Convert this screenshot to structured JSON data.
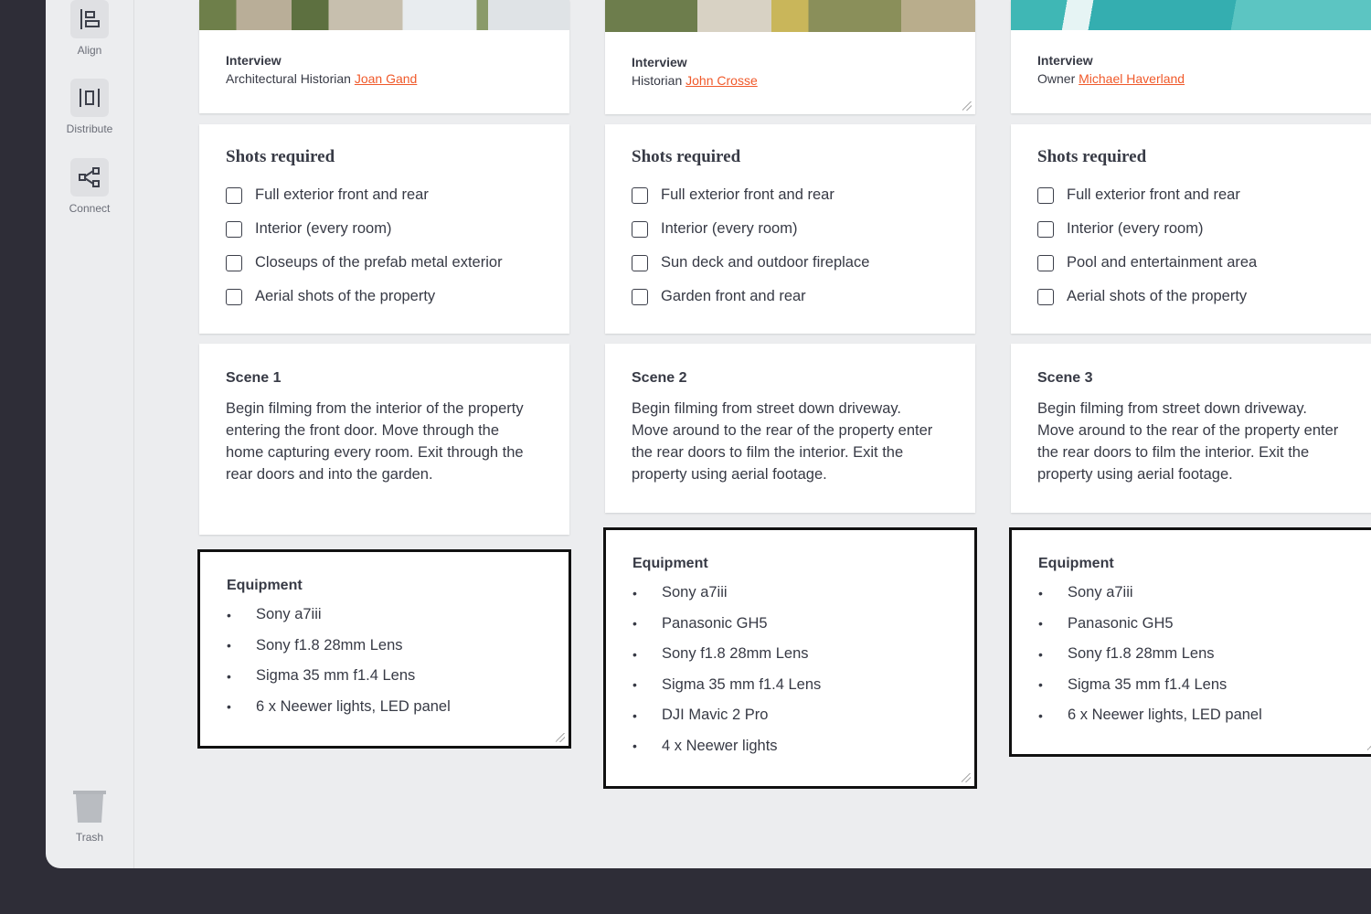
{
  "sidebar": {
    "tools": [
      {
        "label": "Align",
        "icon": "align-icon"
      },
      {
        "label": "Distribute",
        "icon": "distribute-icon"
      },
      {
        "label": "Connect",
        "icon": "connect-icon"
      }
    ],
    "trash": "Trash"
  },
  "columns": [
    {
      "interview": {
        "title": "Interview",
        "role": "Architectural Historian",
        "name": "Joan Gand"
      },
      "shots": {
        "title": "Shots required",
        "items": [
          "Full exterior front and rear",
          "Interior (every room)",
          "Closeups of the prefab metal exterior",
          "Aerial shots of the property"
        ]
      },
      "scene": {
        "title": "Scene 1",
        "text": "Begin filming from the interior of the property entering the front door. Move through the home capturing every room. Exit through the rear doors and into the garden."
      },
      "equipment": {
        "title": "Equipment",
        "items": [
          "Sony a7iii",
          "Sony f1.8 28mm Lens",
          "Sigma 35 mm f1.4 Lens",
          "6 x Neewer lights, LED panel"
        ]
      }
    },
    {
      "interview": {
        "title": "Interview",
        "role": "Historian",
        "name": "John Crosse"
      },
      "shots": {
        "title": "Shots required",
        "items": [
          "Full exterior front and rear",
          "Interior (every room)",
          "Sun deck and outdoor fireplace",
          "Garden front and rear"
        ]
      },
      "scene": {
        "title": "Scene 2",
        "text": "Begin filming from street down driveway. Move around to the rear of the property enter the rear doors to film the interior. Exit the property using aerial footage."
      },
      "equipment": {
        "title": "Equipment",
        "items": [
          "Sony a7iii",
          "Panasonic GH5",
          "Sony f1.8 28mm Lens",
          "Sigma 35 mm f1.4 Lens",
          "DJI Mavic 2 Pro",
          "4 x Neewer lights"
        ]
      }
    },
    {
      "interview": {
        "title": "Interview",
        "role": "Owner",
        "name": "Michael Haverland"
      },
      "shots": {
        "title": "Shots required",
        "items": [
          "Full exterior front and rear",
          "Interior (every room)",
          "Pool and entertainment area",
          "Aerial shots of the property"
        ]
      },
      "scene": {
        "title": "Scene 3",
        "text": "Begin filming from street down driveway. Move around to the rear of the property enter the rear doors to film the interior. Exit the property using aerial footage."
      },
      "equipment": {
        "title": "Equipment",
        "items": [
          "Sony a7iii",
          "Panasonic GH5",
          "Sony f1.8 28mm Lens",
          "Sigma 35 mm f1.4 Lens",
          "6 x Neewer lights, LED panel"
        ]
      }
    }
  ],
  "colors": {
    "link": "#f0592a",
    "background": "#2e2d37",
    "canvas": "#ecedef"
  }
}
